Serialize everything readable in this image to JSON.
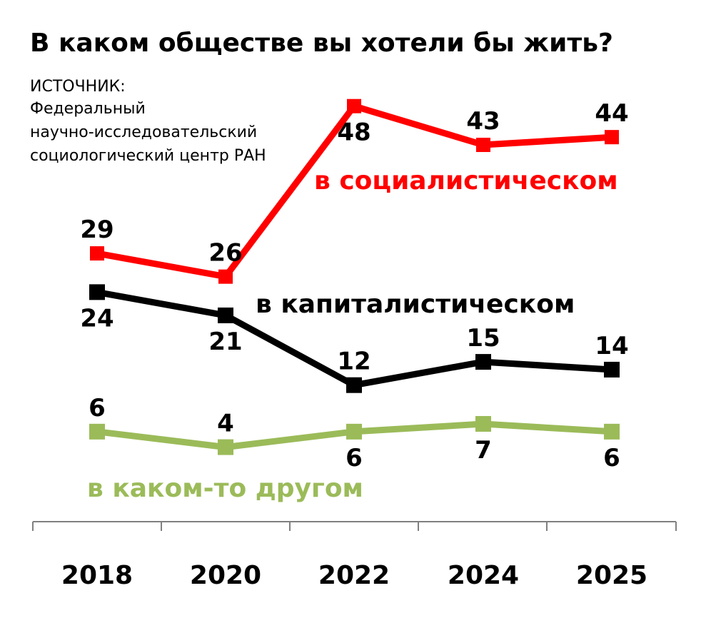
{
  "title": "В каком обществе вы хотели бы жить?",
  "source": {
    "lines": [
      "ИСТОЧНИК:",
      "Федеральный",
      "научно-исследовательский",
      "социологический центр РАН"
    ]
  },
  "chart_data": {
    "type": "line",
    "title": "В каком обществе вы хотели бы жить?",
    "categories": [
      "2018",
      "2020",
      "2022",
      "2024",
      "2025"
    ],
    "ylim": [
      0,
      50
    ],
    "grid": false,
    "legend": "inline labels",
    "series": [
      {
        "name": "в социалистическом",
        "color": "#ff0000",
        "marker": "square",
        "values": [
          29,
          26,
          48,
          43,
          44
        ]
      },
      {
        "name": "в капиталистическом",
        "color": "#000000",
        "marker": "square",
        "values": [
          24,
          21,
          12,
          15,
          14
        ]
      },
      {
        "name": "в каком-то другом",
        "color": "#9bbb59",
        "marker": "square",
        "values": [
          6,
          4,
          6,
          7,
          6
        ]
      }
    ]
  }
}
